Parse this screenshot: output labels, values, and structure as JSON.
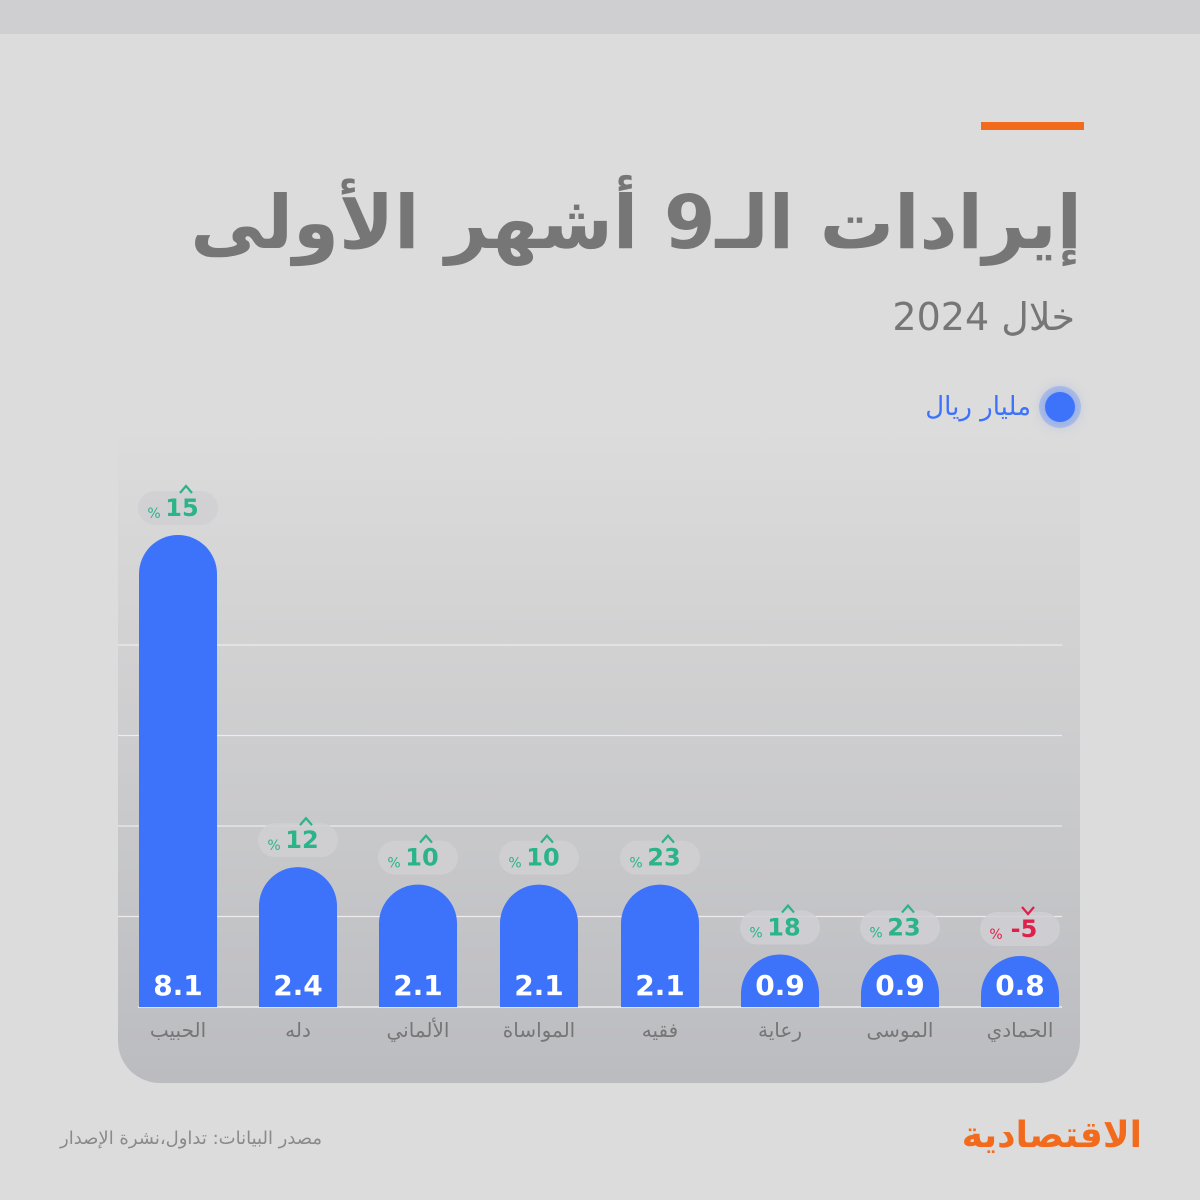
{
  "title": "إيرادات الـ9 أشهر الأولى",
  "subtitle": "خلال 2024",
  "legend": {
    "label": "مليار ريال",
    "color": "#3d72fb"
  },
  "source": "مصدر البيانات: تداول،نشرة الإصدار",
  "brand": "الاقتصادية",
  "colors": {
    "bar": "#3d72fb",
    "up": "#2bb38a",
    "down": "#e0204a",
    "accent": "#f26b1d",
    "text": "#767676"
  },
  "chart_data": {
    "type": "bar",
    "categories": [
      "الحبيب",
      "دله",
      "الألماني",
      "المواساة",
      "فقيه",
      "رعاية",
      "الموسى",
      "الحمادي"
    ],
    "values": [
      8.1,
      2.4,
      2.1,
      2.1,
      2.1,
      0.9,
      0.9,
      0.8
    ],
    "value_labels": [
      "8.1",
      "2.4",
      "2.1",
      "2.1",
      "2.1",
      "0.9",
      "0.9",
      "0.8"
    ],
    "change_labels": [
      "15",
      "12",
      "10",
      "10",
      "23",
      "18",
      "23",
      "-5"
    ],
    "change_direction": [
      "up",
      "up",
      "up",
      "up",
      "up",
      "up",
      "up",
      "down"
    ],
    "change_unit": "%",
    "series": [
      {
        "name": "مليار ريال",
        "values": [
          8.1,
          2.4,
          2.1,
          2.1,
          2.1,
          0.9,
          0.9,
          0.8
        ]
      }
    ],
    "ylim": [
      0,
      8.1
    ],
    "grid": true,
    "legend_position": "top-right"
  }
}
